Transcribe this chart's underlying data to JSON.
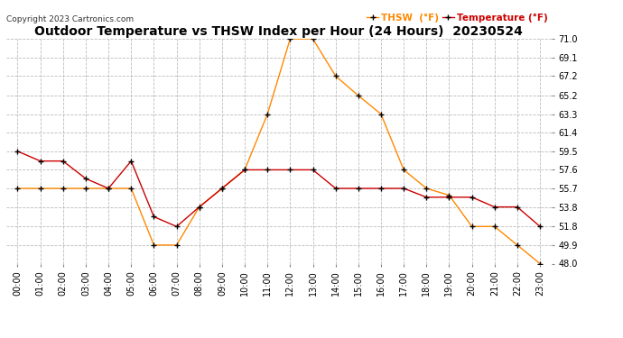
{
  "title": "Outdoor Temperature vs THSW Index per Hour (24 Hours)  20230524",
  "copyright": "Copyright 2023 Cartronics.com",
  "hours": [
    "00:00",
    "01:00",
    "02:00",
    "03:00",
    "04:00",
    "05:00",
    "06:00",
    "07:00",
    "08:00",
    "09:00",
    "10:00",
    "11:00",
    "12:00",
    "13:00",
    "14:00",
    "15:00",
    "16:00",
    "17:00",
    "18:00",
    "19:00",
    "20:00",
    "21:00",
    "22:00",
    "23:00"
  ],
  "temperature": [
    59.5,
    58.5,
    58.5,
    56.7,
    55.7,
    58.5,
    52.8,
    51.8,
    53.8,
    55.7,
    57.6,
    57.6,
    57.6,
    57.6,
    55.7,
    55.7,
    55.7,
    55.7,
    54.8,
    54.8,
    54.8,
    53.8,
    53.8,
    51.8
  ],
  "thsw": [
    55.7,
    55.7,
    55.7,
    55.7,
    55.7,
    55.7,
    49.9,
    49.9,
    53.8,
    55.7,
    57.6,
    63.3,
    71.0,
    71.0,
    67.2,
    65.2,
    63.3,
    57.6,
    55.7,
    55.0,
    51.8,
    51.8,
    49.9,
    48.0
  ],
  "temp_color": "#cc0000",
  "thsw_color": "#ff8800",
  "ylim_min": 48.0,
  "ylim_max": 71.0,
  "yticks": [
    48.0,
    49.9,
    51.8,
    53.8,
    55.7,
    57.6,
    59.5,
    61.4,
    63.3,
    65.2,
    67.2,
    69.1,
    71.0
  ],
  "background_color": "#ffffff",
  "grid_color": "#bbbbbb",
  "title_fontsize": 10,
  "copyright_fontsize": 6.5,
  "legend_thsw": "THSW  (°F)",
  "legend_temp": "Temperature (°F)",
  "legend_fontsize": 7.5,
  "tick_fontsize": 7,
  "ytick_fontsize": 7
}
